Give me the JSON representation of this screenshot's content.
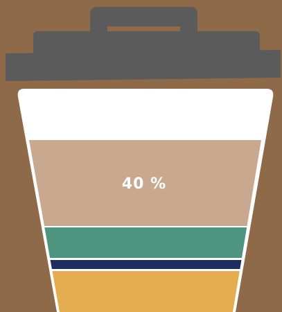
{
  "label": "40 %"
}
